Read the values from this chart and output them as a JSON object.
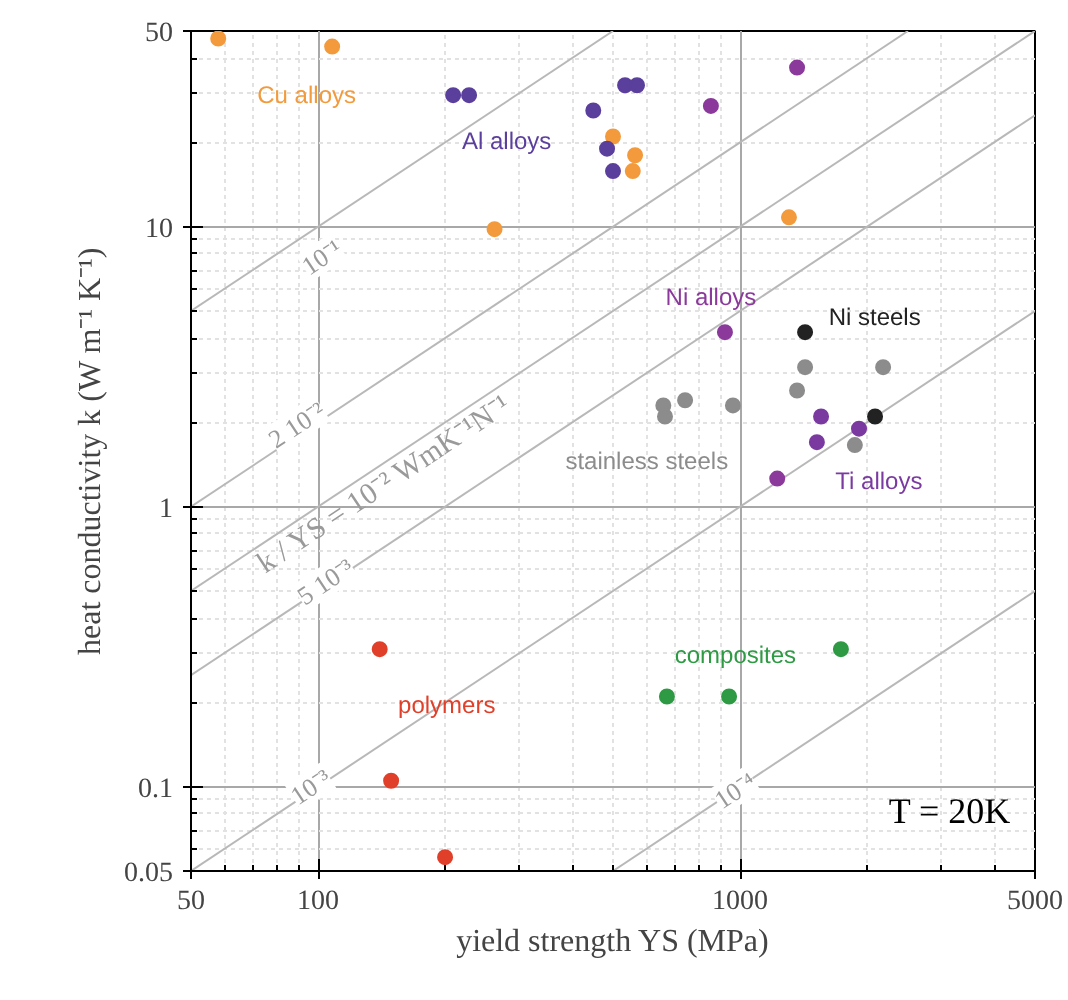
{
  "chart_data": {
    "type": "scatter",
    "xlabel": "yield strength YS (MPa)",
    "ylabel": "heat conductivity k (W m⁻¹ K⁻¹)",
    "log": "xy",
    "xlim": [
      50,
      5000
    ],
    "ylim": [
      0.05,
      50
    ],
    "xticks": [
      50,
      100,
      1000,
      5000
    ],
    "yticks": [
      0.05,
      0.1,
      1,
      10,
      50
    ],
    "grid": true,
    "marker": "circle",
    "series": [
      {
        "color": "#f39a3c",
        "x": [
          58,
          108,
          262,
          500,
          564,
          557,
          1306
        ],
        "values": [
          47,
          44,
          9.8,
          21,
          18,
          15.8,
          10.8
        ]
      },
      {
        "color": "#5b3f9c",
        "x": [
          209,
          228,
          449,
          534,
          570,
          484,
          500
        ],
        "values": [
          29.5,
          29.5,
          26,
          32,
          32,
          19,
          15.8
        ]
      },
      {
        "color": "#8b3a9c",
        "x": [
          1365,
          853,
          921,
          1225
        ],
        "values": [
          37,
          27,
          4.2,
          1.26
        ]
      },
      {
        "color": "#222222",
        "x": [
          1426,
          2089
        ],
        "values": [
          4.2,
          2.1
        ]
      },
      {
        "color": "#8c8c8c",
        "x": [
          658,
          664,
          741,
          962,
          1426,
          1365,
          2183,
          1871
        ],
        "values": [
          2.3,
          2.1,
          2.4,
          2.3,
          3.15,
          2.6,
          3.15,
          1.66
        ]
      },
      {
        "color": "#7a3aa0",
        "x": [
          1556,
          1914,
          1521
        ],
        "values": [
          2.1,
          1.9,
          1.7
        ]
      },
      {
        "color": "#2e9a44",
        "x": [
          671,
          942,
          1734
        ],
        "values": [
          0.21,
          0.21,
          0.31
        ]
      },
      {
        "color": "#e0402a",
        "x": [
          140,
          149,
          200
        ],
        "values": [
          0.31,
          0.105,
          0.056
        ]
      },
      {
        "type": "line",
        "marker": "none",
        "color": "#b8b8b8",
        "x": [
          50,
          500
        ],
        "values": [
          5,
          50
        ]
      },
      {
        "type": "line",
        "marker": "none",
        "color": "#b8b8b8",
        "x": [
          50,
          2500
        ],
        "values": [
          1,
          50
        ]
      },
      {
        "type": "line",
        "marker": "none",
        "color": "#b8b8b8",
        "x": [
          50,
          5000
        ],
        "values": [
          0.5,
          50
        ]
      },
      {
        "type": "line",
        "marker": "none",
        "color": "#b8b8b8",
        "x": [
          50,
          5000
        ],
        "values": [
          0.25,
          25
        ]
      },
      {
        "type": "line",
        "marker": "none",
        "color": "#b8b8b8",
        "x": [
          50,
          5000
        ],
        "values": [
          0.05,
          5
        ]
      },
      {
        "type": "line",
        "marker": "none",
        "color": "#b8b8b8",
        "x": [
          500,
          5000
        ],
        "values": [
          0.05,
          0.5
        ]
      }
    ],
    "annotations": [
      "Cu alloys",
      "Al alloys",
      "Ni alloys",
      "Ni steels",
      "stainless steels",
      "Ti alloys",
      "composites",
      "polymers",
      {
        "text": "10⁻¹",
        "x": 102,
        "y": 7.8
      },
      {
        "text": "2 10⁻²",
        "x": 89,
        "y": 1.96
      },
      "k / YS = 10⁻² WmK⁻¹N⁻¹",
      {
        "text": "5 10⁻³",
        "x": 104,
        "y": 0.54
      },
      {
        "text": "10⁻³",
        "x": 96,
        "y": 0.1
      },
      {
        "text": "10⁻⁴",
        "x": 973,
        "y": 0.097
      },
      "T = 20K"
    ]
  }
}
